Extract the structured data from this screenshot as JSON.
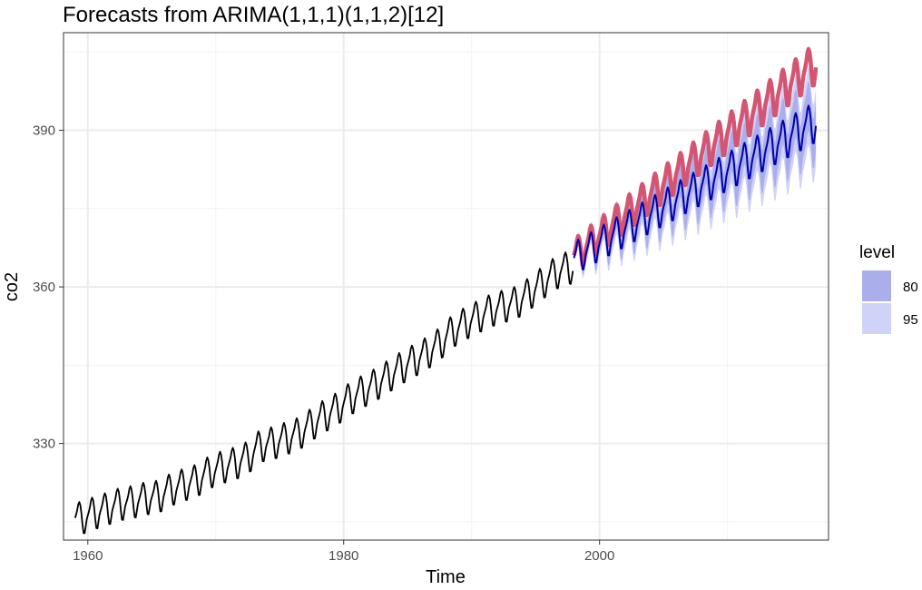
{
  "chart_data": {
    "type": "line",
    "title": "Forecasts from ARIMA(1,1,1)(1,1,2)[12]",
    "xlabel": "Time",
    "ylabel": "co2",
    "xlim": [
      1958.1,
      2017.9
    ],
    "ylim": [
      311.5,
      408.7
    ],
    "x_ticks": [
      1960,
      1980,
      2000
    ],
    "y_ticks": [
      330,
      360,
      390
    ],
    "grid": true,
    "legend": {
      "title": "level",
      "position": "right",
      "entries": [
        {
          "label": "80",
          "color": "#aaafeb"
        },
        {
          "label": "95",
          "color": "#d0d2f7"
        }
      ]
    },
    "series": [
      {
        "role": "observed",
        "color": "#000000",
        "frequency": 12,
        "start": 1959.0,
        "annual_means": [
          315.8,
          316.8,
          317.6,
          318.5,
          318.9,
          319.6,
          319.9,
          321.3,
          322.2,
          323.0,
          324.6,
          325.6,
          326.3,
          327.4,
          329.7,
          330.2,
          331.1,
          332.0,
          333.8,
          335.4,
          336.8,
          338.7,
          340.1,
          341.4,
          343.0,
          344.6,
          346.0,
          347.4,
          349.2,
          351.6,
          353.1,
          354.4,
          355.6,
          356.4,
          357.1,
          358.8,
          360.8,
          362.7,
          363.8
        ],
        "seasonal": [
          -0.05,
          0.6,
          1.35,
          2.5,
          3.0,
          2.35,
          0.85,
          -1.4,
          -3.15,
          -3.25,
          -2.05,
          -0.75
        ]
      },
      {
        "role": "forecast",
        "color": "#0000aa",
        "frequency": 12,
        "start": 1998.0,
        "start_mean": 365.6,
        "end_mean": 391.8,
        "seasonal": [
          -0.05,
          0.6,
          1.35,
          2.5,
          3.0,
          2.35,
          0.85,
          -1.4,
          -3.15,
          -3.25,
          -2.05,
          -0.75
        ],
        "pi80_halfwidth_end": 4.8,
        "pi95_halfwidth_end": 7.6
      },
      {
        "role": "actual-test",
        "color": "#d45572",
        "frequency": 12,
        "start": 1998.0,
        "start_mean": 366.1,
        "end_mean": 403.0,
        "seasonal": [
          -0.05,
          0.6,
          1.35,
          2.5,
          3.0,
          2.35,
          0.85,
          -1.4,
          -3.15,
          -3.25,
          -2.05,
          -0.75
        ]
      }
    ],
    "x_end": 2016.95
  }
}
